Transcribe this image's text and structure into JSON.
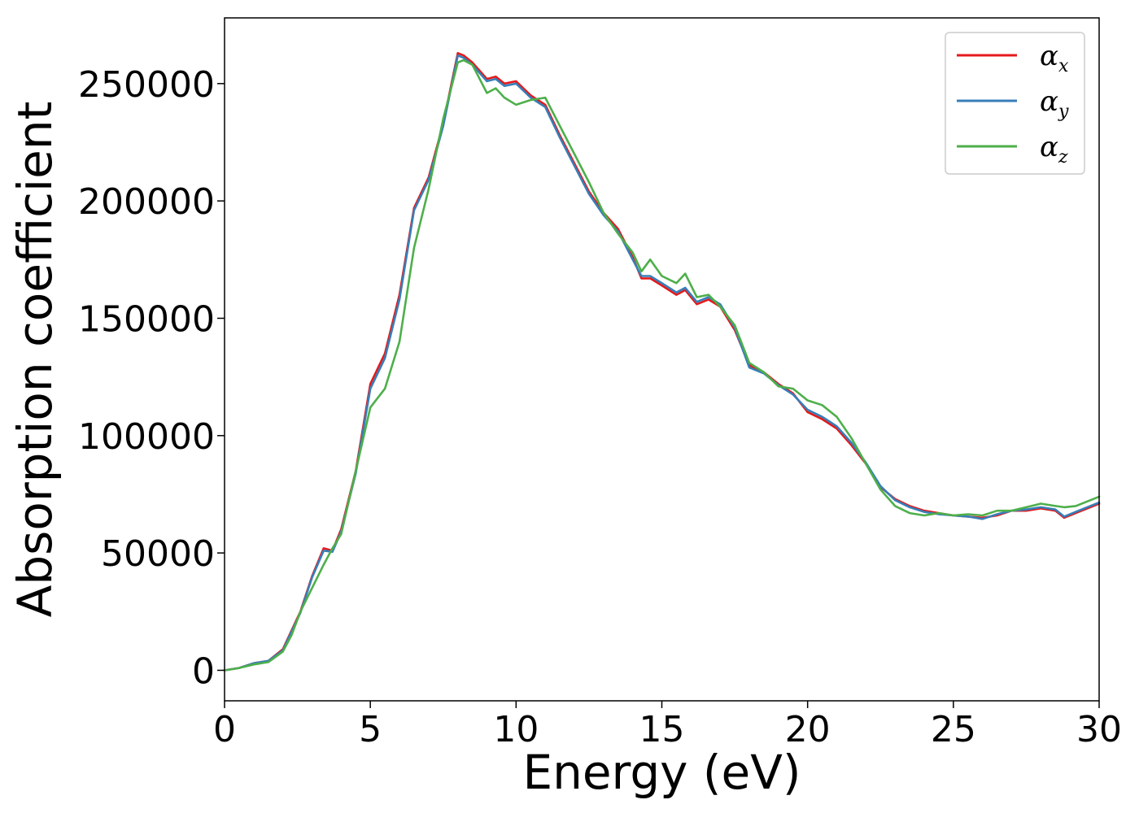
{
  "chart_data": {
    "type": "line",
    "xlabel": "Energy (eV)",
    "ylabel": "Absorption coefficient",
    "xlim": [
      0,
      30
    ],
    "ylim": [
      -13000,
      278000
    ],
    "xticks": [
      0,
      5,
      10,
      15,
      20,
      25,
      30
    ],
    "xtick_labels": [
      "0",
      "5",
      "10",
      "15",
      "20",
      "25",
      "30"
    ],
    "yticks": [
      0,
      50000,
      100000,
      150000,
      200000,
      250000
    ],
    "ytick_labels": [
      "0",
      "50000",
      "100000",
      "150000",
      "200000",
      "250000"
    ],
    "grid": false,
    "legend_position": "top-right",
    "series": [
      {
        "name": "α",
        "subscript": "x",
        "color": "#e41a1c",
        "x": [
          0,
          0.5,
          1,
          1.5,
          2,
          2.3,
          2.6,
          3,
          3.4,
          3.7,
          4,
          4.5,
          5,
          5.5,
          6,
          6.5,
          7,
          7.5,
          8,
          8.2,
          8.5,
          9,
          9.3,
          9.6,
          10,
          10.5,
          11,
          11.5,
          12,
          12.5,
          13,
          13.5,
          14,
          14.3,
          14.6,
          15,
          15.5,
          15.8,
          16.2,
          16.6,
          17,
          17.5,
          18,
          18.5,
          19,
          19.5,
          20,
          20.5,
          21,
          21.5,
          22,
          22.5,
          23,
          23.5,
          24,
          24.5,
          25,
          25.5,
          26,
          26.5,
          27,
          27.5,
          28,
          28.5,
          28.8,
          29.2,
          30
        ],
        "y": [
          0,
          1000,
          3000,
          4000,
          9000,
          17000,
          25000,
          40000,
          52000,
          51000,
          60000,
          85000,
          122000,
          135000,
          160000,
          197000,
          210000,
          233000,
          263000,
          262000,
          259000,
          252000,
          253000,
          250000,
          251000,
          245000,
          241000,
          228000,
          216000,
          204000,
          195000,
          188000,
          176000,
          167000,
          167000,
          164000,
          160000,
          162000,
          156000,
          158000,
          155000,
          145000,
          130000,
          127000,
          122000,
          118000,
          110000,
          107000,
          103000,
          96000,
          88000,
          78000,
          73000,
          70000,
          68000,
          67000,
          66000,
          65500,
          65000,
          66000,
          68000,
          68000,
          69000,
          68000,
          65000,
          67000,
          71000
        ]
      },
      {
        "name": "α",
        "subscript": "y",
        "color": "#377eb8",
        "x": [
          0,
          0.5,
          1,
          1.5,
          2,
          2.3,
          2.6,
          3,
          3.4,
          3.7,
          4,
          4.5,
          5,
          5.5,
          6,
          6.5,
          7,
          7.5,
          8,
          8.2,
          8.5,
          9,
          9.3,
          9.6,
          10,
          10.5,
          11,
          11.5,
          12,
          12.5,
          13,
          13.5,
          14,
          14.3,
          14.6,
          15,
          15.5,
          15.8,
          16.2,
          16.6,
          17,
          17.5,
          18,
          18.5,
          19,
          19.5,
          20,
          20.5,
          21,
          21.5,
          22,
          22.5,
          23,
          23.5,
          24,
          24.5,
          25,
          25.5,
          26,
          26.5,
          27,
          27.5,
          28,
          28.5,
          28.8,
          29.2,
          30
        ],
        "y": [
          0,
          1000,
          3000,
          4000,
          8500,
          16500,
          24500,
          39500,
          51000,
          50500,
          59000,
          84000,
          120000,
          133000,
          158000,
          196000,
          209000,
          232000,
          262000,
          261000,
          258000,
          251000,
          252000,
          249000,
          250000,
          244000,
          240000,
          227000,
          215000,
          203000,
          194000,
          187000,
          175000,
          168000,
          168000,
          165000,
          161000,
          163000,
          157000,
          159000,
          156000,
          146000,
          129000,
          126500,
          121500,
          117500,
          111000,
          108000,
          104000,
          97000,
          88500,
          78500,
          72500,
          69500,
          67500,
          66500,
          66000,
          65500,
          64500,
          66500,
          68000,
          68500,
          69500,
          68500,
          65500,
          67500,
          71500
        ]
      },
      {
        "name": "α",
        "subscript": "z",
        "color": "#4daf4a",
        "x": [
          0,
          0.5,
          1,
          1.5,
          2,
          2.3,
          2.6,
          3,
          3.4,
          3.7,
          4,
          4.5,
          5,
          5.5,
          6,
          6.5,
          7,
          7.5,
          8,
          8.2,
          8.5,
          9,
          9.3,
          9.6,
          10,
          10.5,
          11,
          11.5,
          12,
          12.5,
          13,
          13.5,
          14,
          14.3,
          14.6,
          15,
          15.5,
          15.8,
          16.2,
          16.6,
          17,
          17.5,
          18,
          18.5,
          19,
          19.5,
          20,
          20.5,
          21,
          21.5,
          22,
          22.5,
          23,
          23.5,
          24,
          24.5,
          25,
          25.5,
          26,
          26.5,
          27,
          27.5,
          28,
          28.5,
          28.8,
          29.2,
          30
        ],
        "y": [
          0,
          1000,
          2500,
          3500,
          8000,
          15000,
          25000,
          35000,
          45000,
          52000,
          58000,
          85000,
          112000,
          120000,
          140000,
          180000,
          205000,
          235000,
          259000,
          260000,
          258000,
          246000,
          248000,
          244000,
          241000,
          243000,
          244000,
          232000,
          220000,
          208000,
          195000,
          186000,
          178000,
          170000,
          175000,
          168000,
          165000,
          169000,
          159000,
          160000,
          155000,
          147000,
          131000,
          127000,
          121000,
          120000,
          115000,
          113000,
          108000,
          99000,
          88000,
          77000,
          70000,
          67000,
          66000,
          67000,
          66000,
          66500,
          66000,
          68000,
          68000,
          69500,
          71000,
          70000,
          69500,
          70000,
          74000
        ]
      }
    ]
  }
}
